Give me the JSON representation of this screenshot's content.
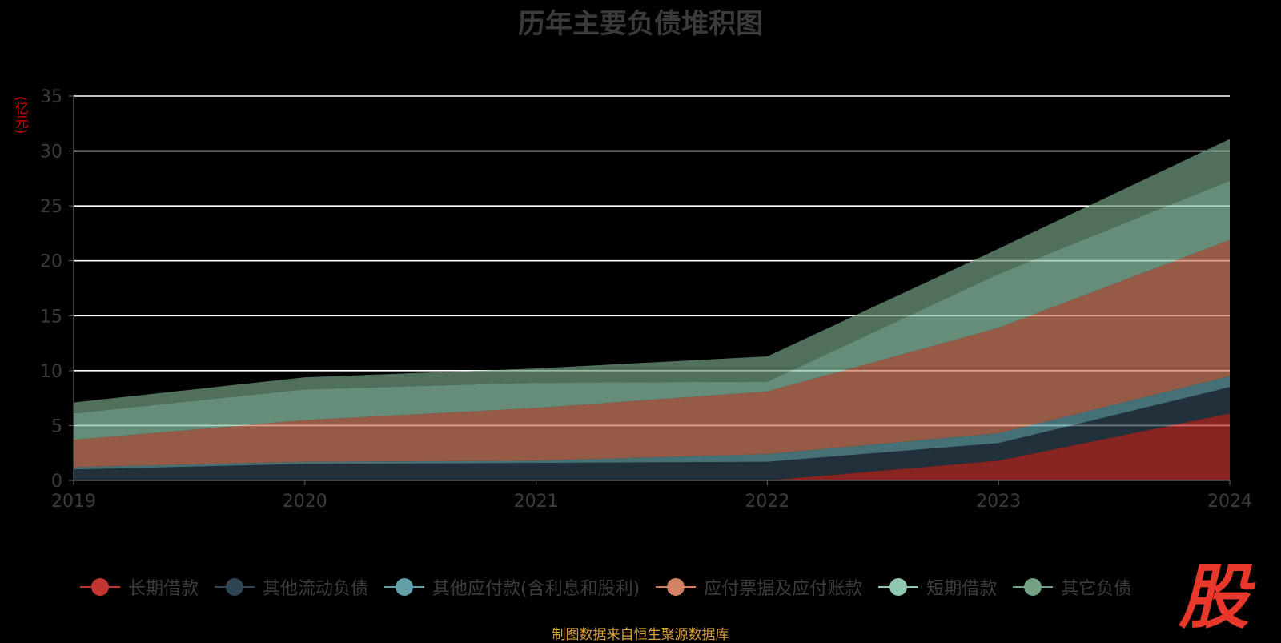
{
  "chart_data": {
    "type": "area",
    "title": "历年主要负债堆积图",
    "ylabel": "(亿元)",
    "x": [
      "2019",
      "2020",
      "2021",
      "2022",
      "2023",
      "2024"
    ],
    "ylim": [
      0,
      35
    ],
    "yticks": [
      "0",
      "5",
      "10",
      "15",
      "20",
      "25",
      "30",
      "35"
    ],
    "stacked": true,
    "grid": true,
    "legend_position": "bottom",
    "series": [
      {
        "name": "长期借款",
        "color": "#c23531",
        "values": [
          0.0,
          0.0,
          0.0,
          0.0,
          1.8,
          6.1
        ]
      },
      {
        "name": "其他流动负债",
        "color": "#2f4554",
        "values": [
          1.0,
          1.5,
          1.6,
          1.7,
          1.6,
          2.4
        ]
      },
      {
        "name": "其他应付款(含利息和股利)",
        "color": "#61a0a8",
        "values": [
          0.2,
          0.2,
          0.2,
          0.7,
          0.9,
          1.0
        ]
      },
      {
        "name": "应付票据及应付账款",
        "color": "#d48265",
        "values": [
          2.5,
          3.8,
          4.8,
          5.7,
          9.6,
          12.4
        ]
      },
      {
        "name": "短期借款",
        "color": "#91c7ae",
        "values": [
          2.4,
          2.8,
          2.3,
          0.9,
          4.9,
          5.4
        ]
      },
      {
        "name": "其它负债",
        "color": "#749f83",
        "values": [
          1.0,
          1.1,
          1.3,
          2.3,
          2.3,
          3.8
        ]
      }
    ]
  },
  "source_note": "制图数据来自恒生聚源数据库",
  "logo_text": "股"
}
